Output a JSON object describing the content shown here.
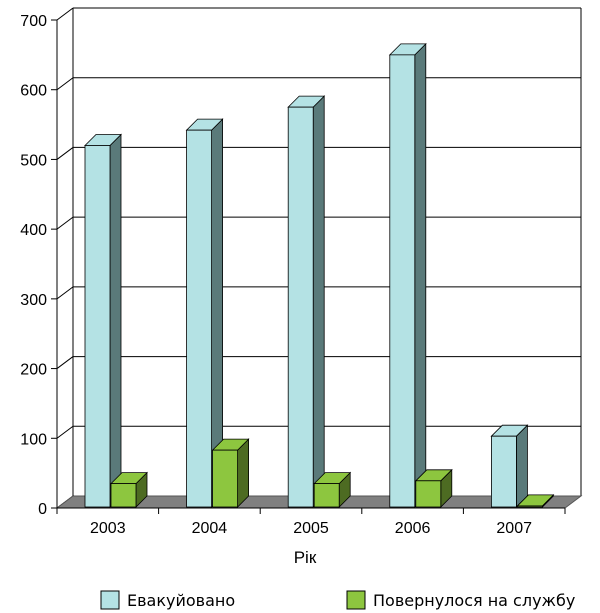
{
  "chart_data": {
    "type": "bar",
    "title": "",
    "xlabel": "Рік",
    "ylabel": "",
    "categories": [
      "2003",
      "2004",
      "2005",
      "2006",
      "2007"
    ],
    "series": [
      {
        "name": "Евакуйовано",
        "values": [
          520,
          542,
          575,
          650,
          103
        ],
        "color": "#b4e2e4",
        "side_color": "#5a7a7a"
      },
      {
        "name": "Повернулося на службу",
        "values": [
          35,
          83,
          35,
          39,
          3
        ],
        "color": "#8dc63f",
        "side_color": "#4d6b22"
      }
    ],
    "ylim": [
      0,
      700
    ],
    "yticks": [
      0,
      100,
      200,
      300,
      400,
      500,
      600,
      700
    ],
    "grid": true,
    "legend_position": "bottom"
  }
}
